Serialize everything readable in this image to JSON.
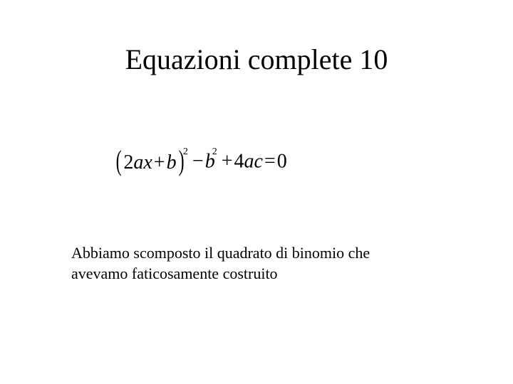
{
  "slide": {
    "title": "Equazioni complete 10",
    "title_fontsize": 40,
    "equation": {
      "lparen": "(",
      "term1_coef": "2",
      "term1_var1": "a",
      "term1_var2": "x",
      "plus1": "+",
      "term2_var": "b",
      "rparen": ")",
      "exp1": "2",
      "minus": "−",
      "term3_var": "b",
      "exp2": "2",
      "plus2": "+",
      "term4_coef": "4",
      "term4_var1": "a",
      "term4_var2": "c",
      "equals": "=",
      "rhs": "0",
      "fontsize": 28
    },
    "body_line1": "Abbiamo scomposto il quadrato di binomio che",
    "body_line2": "avevamo faticosamente costruito",
    "body_fontsize": 22,
    "background_color": "#ffffff",
    "text_color": "#000000",
    "font_family": "Times New Roman"
  }
}
